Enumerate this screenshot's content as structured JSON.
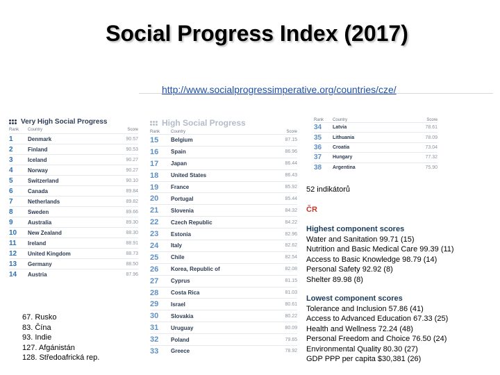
{
  "title": "Social Progress Index (2017)",
  "url": "http://www.socialprogressimperative.org/countries/cze/",
  "very_high": {
    "heading": "Very High Social Progress",
    "columns": [
      "Rank",
      "Country",
      "Score"
    ],
    "rows": [
      {
        "rank": "1",
        "country": "Denmark",
        "score": "90.57"
      },
      {
        "rank": "2",
        "country": "Finland",
        "score": "90.53"
      },
      {
        "rank": "3",
        "country": "Iceland",
        "score": "90.27"
      },
      {
        "rank": "4",
        "country": "Norway",
        "score": "90.27"
      },
      {
        "rank": "5",
        "country": "Switzerland",
        "score": "90.10"
      },
      {
        "rank": "6",
        "country": "Canada",
        "score": "89.84"
      },
      {
        "rank": "7",
        "country": "Netherlands",
        "score": "89.82"
      },
      {
        "rank": "8",
        "country": "Sweden",
        "score": "89.66"
      },
      {
        "rank": "9",
        "country": "Australia",
        "score": "89.30"
      },
      {
        "rank": "10",
        "country": "New Zealand",
        "score": "88.30"
      },
      {
        "rank": "11",
        "country": "Ireland",
        "score": "88.91"
      },
      {
        "rank": "12",
        "country": "United Kingdom",
        "score": "88.73"
      },
      {
        "rank": "13",
        "country": "Germany",
        "score": "88.50"
      },
      {
        "rank": "14",
        "country": "Austria",
        "score": "87.96"
      }
    ]
  },
  "high": {
    "heading": "High Social Progress",
    "columns": [
      "Rank",
      "Country",
      "Score"
    ],
    "rows": [
      {
        "rank": "15",
        "country": "Belgium",
        "score": "87.15"
      },
      {
        "rank": "16",
        "country": "Spain",
        "score": "86.96"
      },
      {
        "rank": "17",
        "country": "Japan",
        "score": "86.44"
      },
      {
        "rank": "18",
        "country": "United States",
        "score": "86.43"
      },
      {
        "rank": "19",
        "country": "France",
        "score": "85.92"
      },
      {
        "rank": "20",
        "country": "Portugal",
        "score": "85.44"
      },
      {
        "rank": "21",
        "country": "Slovenia",
        "score": "84.32"
      },
      {
        "rank": "22",
        "country": "Czech Republic",
        "score": "84.22"
      },
      {
        "rank": "23",
        "country": "Estonia",
        "score": "82.96"
      },
      {
        "rank": "24",
        "country": "Italy",
        "score": "82.62"
      },
      {
        "rank": "25",
        "country": "Chile",
        "score": "82.54"
      },
      {
        "rank": "26",
        "country": "Korea, Republic of",
        "score": "82.08"
      },
      {
        "rank": "27",
        "country": "Cyprus",
        "score": "81.15"
      },
      {
        "rank": "28",
        "country": "Costa Rica",
        "score": "81.03"
      },
      {
        "rank": "29",
        "country": "Israel",
        "score": "80.61"
      },
      {
        "rank": "30",
        "country": "Slovakia",
        "score": "80.22"
      },
      {
        "rank": "31",
        "country": "Uruguay",
        "score": "80.09"
      },
      {
        "rank": "32",
        "country": "Poland",
        "score": "79.65"
      },
      {
        "rank": "33",
        "country": "Greece",
        "score": "78.92"
      }
    ]
  },
  "small_table": {
    "columns": [
      "Rank",
      "Country",
      "Score"
    ],
    "rows": [
      {
        "rank": "34",
        "country": "Latvia",
        "score": "78.61"
      },
      {
        "rank": "35",
        "country": "Lithuania",
        "score": "78.09"
      },
      {
        "rank": "36",
        "country": "Croatia",
        "score": "73.04"
      },
      {
        "rank": "37",
        "country": "Hungary",
        "score": "77.32"
      },
      {
        "rank": "38",
        "country": "Argentina",
        "score": "75.90"
      }
    ]
  },
  "indicators": "52 indikátorů",
  "country_code": "ČR",
  "highest": {
    "heading": "Highest component scores",
    "lines": [
      "Water and Sanitation 99.71 (15)",
      "Nutrition and Basic Medical Care 99.39 (11)",
      "Access to Basic Knowledge 98.79 (14)",
      "Personal Safety 92.92 (8)",
      "Shelter 89.98 (8)"
    ]
  },
  "lowest": {
    "heading": "Lowest component scores",
    "lines": [
      "Tolerance and Inclusion 57.86 (41)",
      "Access to Advanced Education 67.33 (25)",
      "Health and Wellness 72.24 (48)",
      "Personal Freedom and Choice 76.50 (24)",
      "Environmental Quality 80.30 (27)",
      "GDP PPP per capita $30,381 (26)"
    ]
  },
  "other_ranks": [
    "67. Rusko",
    "83. Čína",
    "93. Indie",
    "127. Afgánistán",
    "128. Středoafrická rep."
  ]
}
